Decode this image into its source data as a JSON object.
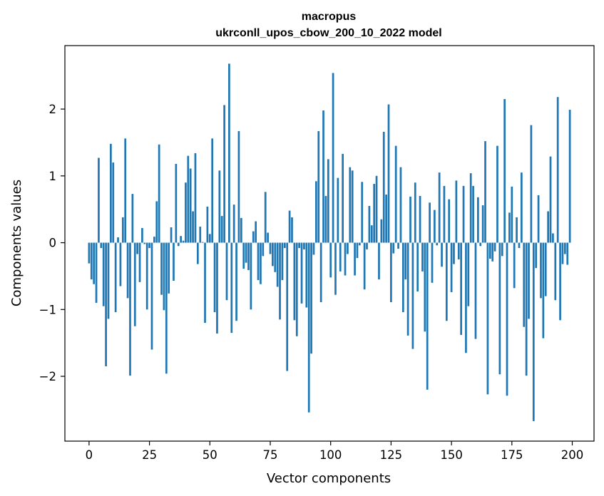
{
  "chart_data": {
    "type": "bar",
    "title": "macropus",
    "subtitle": "ukrconll_upos_cbow_200_10_2022 model",
    "xlabel": "Vector components",
    "ylabel": "Components values",
    "xlim": [
      -10,
      209
    ],
    "ylim": [
      -2.97,
      2.95
    ],
    "xticks": [
      0,
      25,
      50,
      75,
      100,
      125,
      150,
      175,
      200
    ],
    "yticks": [
      -2,
      -1,
      0,
      1,
      2
    ],
    "xtick_labels": [
      "0",
      "25",
      "50",
      "75",
      "100",
      "125",
      "150",
      "175",
      "200"
    ],
    "ytick_labels": [
      "−2",
      "−1",
      "0",
      "1",
      "2"
    ],
    "grid": false,
    "bar_color": "#1f77b4",
    "x": [
      0,
      1,
      2,
      3,
      4,
      5,
      6,
      7,
      8,
      9,
      10,
      11,
      12,
      13,
      14,
      15,
      16,
      17,
      18,
      19,
      20,
      21,
      22,
      23,
      24,
      25,
      26,
      27,
      28,
      29,
      30,
      31,
      32,
      33,
      34,
      35,
      36,
      37,
      38,
      39,
      40,
      41,
      42,
      43,
      44,
      45,
      46,
      47,
      48,
      49,
      50,
      51,
      52,
      53,
      54,
      55,
      56,
      57,
      58,
      59,
      60,
      61,
      62,
      63,
      64,
      65,
      66,
      67,
      68,
      69,
      70,
      71,
      72,
      73,
      74,
      75,
      76,
      77,
      78,
      79,
      80,
      81,
      82,
      83,
      84,
      85,
      86,
      87,
      88,
      89,
      90,
      91,
      92,
      93,
      94,
      95,
      96,
      97,
      98,
      99,
      100,
      101,
      102,
      103,
      104,
      105,
      106,
      107,
      108,
      109,
      110,
      111,
      112,
      113,
      114,
      115,
      116,
      117,
      118,
      119,
      120,
      121,
      122,
      123,
      124,
      125,
      126,
      127,
      128,
      129,
      130,
      131,
      132,
      133,
      134,
      135,
      136,
      137,
      138,
      139,
      140,
      141,
      142,
      143,
      144,
      145,
      146,
      147,
      148,
      149,
      150,
      151,
      152,
      153,
      154,
      155,
      156,
      157,
      158,
      159,
      160,
      161,
      162,
      163,
      164,
      165,
      166,
      167,
      168,
      169,
      170,
      171,
      172,
      173,
      174,
      175,
      176,
      177,
      178,
      179,
      180,
      181,
      182,
      183,
      184,
      185,
      186,
      187,
      188,
      189,
      190,
      191,
      192,
      193,
      194,
      195,
      196,
      197,
      198,
      199
    ],
    "values": [
      -0.31,
      -0.55,
      -0.62,
      -0.9,
      1.27,
      -0.08,
      -0.95,
      -1.85,
      -1.14,
      1.48,
      1.2,
      -1.04,
      0.08,
      -0.65,
      0.38,
      1.56,
      -0.83,
      -1.99,
      0.73,
      -1.25,
      -0.17,
      -0.59,
      0.22,
      -0.02,
      -1.0,
      -0.08,
      -1.6,
      0.09,
      0.62,
      1.47,
      -0.78,
      -1.01,
      -1.96,
      -0.76,
      0.23,
      -0.57,
      1.18,
      -0.05,
      0.1,
      0.03,
      0.9,
      1.3,
      1.11,
      0.47,
      1.34,
      -0.32,
      0.24,
      0.01,
      -1.2,
      0.54,
      0.13,
      1.56,
      -1.04,
      -1.36,
      1.08,
      0.4,
      2.06,
      -0.86,
      2.68,
      -1.35,
      0.57,
      -1.17,
      1.67,
      0.37,
      -0.39,
      -0.3,
      -0.41,
      -1.0,
      0.17,
      0.32,
      -0.56,
      -0.62,
      -0.2,
      0.76,
      0.15,
      -0.17,
      -0.35,
      -0.44,
      -0.66,
      -1.15,
      -0.56,
      -0.08,
      -1.92,
      0.48,
      0.38,
      -1.16,
      -1.4,
      -0.08,
      -0.91,
      -0.1,
      -0.97,
      -2.54,
      -1.66,
      -0.18,
      0.92,
      1.67,
      -0.89,
      1.98,
      0.7,
      1.25,
      -0.52,
      2.54,
      -0.78,
      0.97,
      -0.43,
      1.33,
      -0.49,
      -0.17,
      1.13,
      1.08,
      -0.49,
      -0.23,
      -0.04,
      0.91,
      -0.7,
      -0.1,
      0.55,
      0.26,
      0.88,
      1.0,
      -0.55,
      0.35,
      1.66,
      0.72,
      2.07,
      -0.89,
      -0.16,
      1.45,
      -0.09,
      1.13,
      -1.04,
      -0.55,
      -1.39,
      0.69,
      -1.59,
      0.9,
      -0.73,
      0.7,
      -0.43,
      -1.33,
      -2.2,
      0.6,
      -0.6,
      0.49,
      -0.04,
      1.05,
      -0.36,
      0.85,
      -1.17,
      0.65,
      -0.74,
      -0.32,
      0.93,
      -0.25,
      -1.38,
      0.85,
      -1.65,
      -0.95,
      1.04,
      0.85,
      -1.44,
      0.68,
      -0.05,
      0.56,
      1.52,
      -2.27,
      -0.24,
      -0.28,
      -0.13,
      1.45,
      -1.97,
      -0.2,
      2.15,
      -2.29,
      0.45,
      0.84,
      -0.68,
      0.38,
      -0.08,
      1.05,
      -1.26,
      -1.99,
      -1.14,
      1.76,
      -2.67,
      -0.38,
      0.71,
      -0.83,
      -1.43,
      -0.8,
      0.47,
      1.29,
      0.14,
      -0.86,
      2.18,
      -1.16,
      -0.32,
      -0.17,
      -0.33,
      1.99
    ]
  }
}
